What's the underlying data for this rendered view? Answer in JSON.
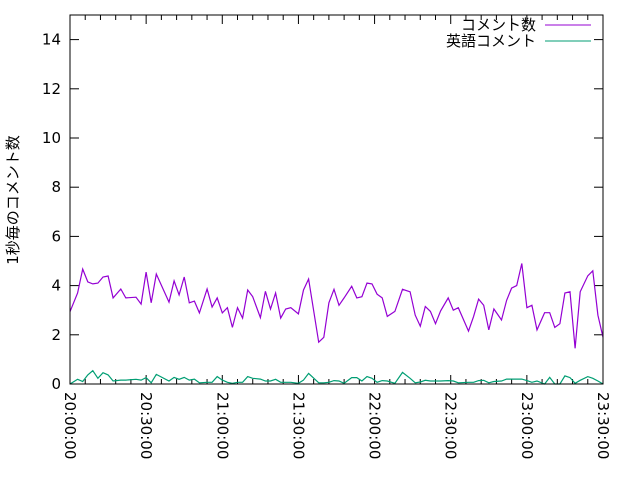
{
  "chart_data": {
    "type": "line",
    "title": "",
    "xlabel": "",
    "ylabel": "1秒毎のコメント数",
    "xlim": [
      "20:00:00",
      "23:30:00"
    ],
    "ylim": [
      0,
      15
    ],
    "x_ticks": [
      "20:00:00",
      "20:30:00",
      "21:00:00",
      "21:30:00",
      "22:00:00",
      "22:30:00",
      "23:00:00",
      "23:30:00"
    ],
    "y_ticks": [
      0,
      2,
      4,
      6,
      8,
      10,
      12,
      14
    ],
    "grid": false,
    "legend": "top-right",
    "x": [
      "20:00",
      "20:03",
      "20:05",
      "20:07",
      "20:09",
      "20:11",
      "20:13",
      "20:15",
      "20:17",
      "20:20",
      "20:22",
      "20:26",
      "20:28",
      "20:30",
      "20:32",
      "20:34",
      "20:39",
      "20:41",
      "20:43",
      "20:45",
      "20:47",
      "20:49",
      "20:51",
      "20:54",
      "20:56",
      "20:58",
      "21:00",
      "21:02",
      "21:04",
      "21:06",
      "21:08",
      "21:10",
      "21:12",
      "21:15",
      "21:17",
      "21:19",
      "21:21",
      "21:23",
      "21:25",
      "21:27",
      "21:30",
      "21:32",
      "21:34",
      "21:38",
      "21:40",
      "21:42",
      "21:44",
      "21:46",
      "21:48",
      "21:51",
      "21:53",
      "21:55",
      "21:57",
      "21:59",
      "22:01",
      "22:03",
      "22:05",
      "22:08",
      "22:11",
      "22:14",
      "22:16",
      "22:18",
      "22:20",
      "22:22",
      "22:24",
      "22:26",
      "22:29",
      "22:31",
      "22:33",
      "22:37",
      "22:39",
      "22:41",
      "22:43",
      "22:45",
      "22:47",
      "22:50",
      "22:52",
      "22:54",
      "22:56",
      "22:58",
      "23:00",
      "23:02",
      "23:04",
      "23:07",
      "23:09",
      "23:11",
      "23:13",
      "23:15",
      "23:17",
      "23:19",
      "23:21",
      "23:24",
      "23:26",
      "23:28",
      "23:30"
    ],
    "series": [
      {
        "name": "コメント数",
        "color": "#9400d3",
        "values": [
          2.94,
          3.7,
          4.67,
          4.15,
          4.07,
          4.1,
          4.35,
          4.39,
          3.5,
          3.86,
          3.5,
          3.53,
          3.25,
          4.55,
          3.3,
          4.47,
          3.33,
          4.19,
          3.62,
          4.35,
          3.3,
          3.37,
          2.89,
          3.86,
          3.13,
          3.5,
          2.89,
          3.1,
          2.3,
          3.1,
          2.68,
          3.82,
          3.55,
          2.7,
          3.77,
          3.05,
          3.7,
          2.68,
          3.05,
          3.1,
          2.85,
          3.82,
          4.27,
          1.7,
          1.9,
          3.3,
          3.85,
          3.2,
          3.5,
          3.97,
          3.5,
          3.55,
          4.1,
          4.07,
          3.65,
          3.5,
          2.75,
          2.95,
          3.85,
          3.75,
          2.8,
          2.35,
          3.15,
          2.95,
          2.45,
          2.97,
          3.5,
          3.0,
          3.1,
          2.15,
          2.75,
          3.45,
          3.2,
          2.2,
          3.05,
          2.6,
          3.4,
          3.9,
          4.0,
          4.9,
          3.1,
          3.2,
          2.2,
          2.9,
          2.9,
          2.3,
          2.45,
          3.7,
          3.75,
          1.45,
          3.75,
          4.4,
          4.6,
          2.8,
          1.9
        ]
      },
      {
        "name": "英語コメント",
        "color": "#009e73",
        "values": [
          0,
          0.19,
          0.1,
          0.37,
          0.54,
          0.23,
          0.46,
          0.37,
          0.12,
          0.16,
          0.16,
          0.19,
          0.16,
          0.26,
          0.05,
          0.39,
          0.12,
          0.27,
          0.19,
          0.27,
          0.16,
          0.2,
          0.05,
          0.07,
          0.07,
          0.3,
          0.16,
          0.07,
          0.03,
          0.07,
          0.07,
          0.3,
          0.23,
          0.2,
          0.12,
          0.12,
          0.19,
          0.07,
          0.07,
          0.07,
          0.03,
          0.16,
          0.43,
          0.05,
          0.05,
          0.07,
          0.14,
          0.12,
          0.03,
          0.26,
          0.26,
          0.12,
          0.3,
          0.23,
          0.07,
          0.14,
          0.12,
          0.03,
          0.47,
          0.23,
          0.05,
          0.08,
          0.15,
          0.12,
          0.12,
          0.12,
          0.14,
          0.12,
          0.05,
          0.07,
          0.07,
          0.14,
          0.15,
          0.05,
          0.1,
          0.12,
          0.2,
          0.2,
          0.2,
          0.2,
          0.14,
          0.07,
          0.12,
          0,
          0.27,
          0,
          0,
          0.33,
          0.26,
          0.03,
          0.15,
          0.3,
          0.23,
          0.12,
          0
        ]
      }
    ]
  }
}
